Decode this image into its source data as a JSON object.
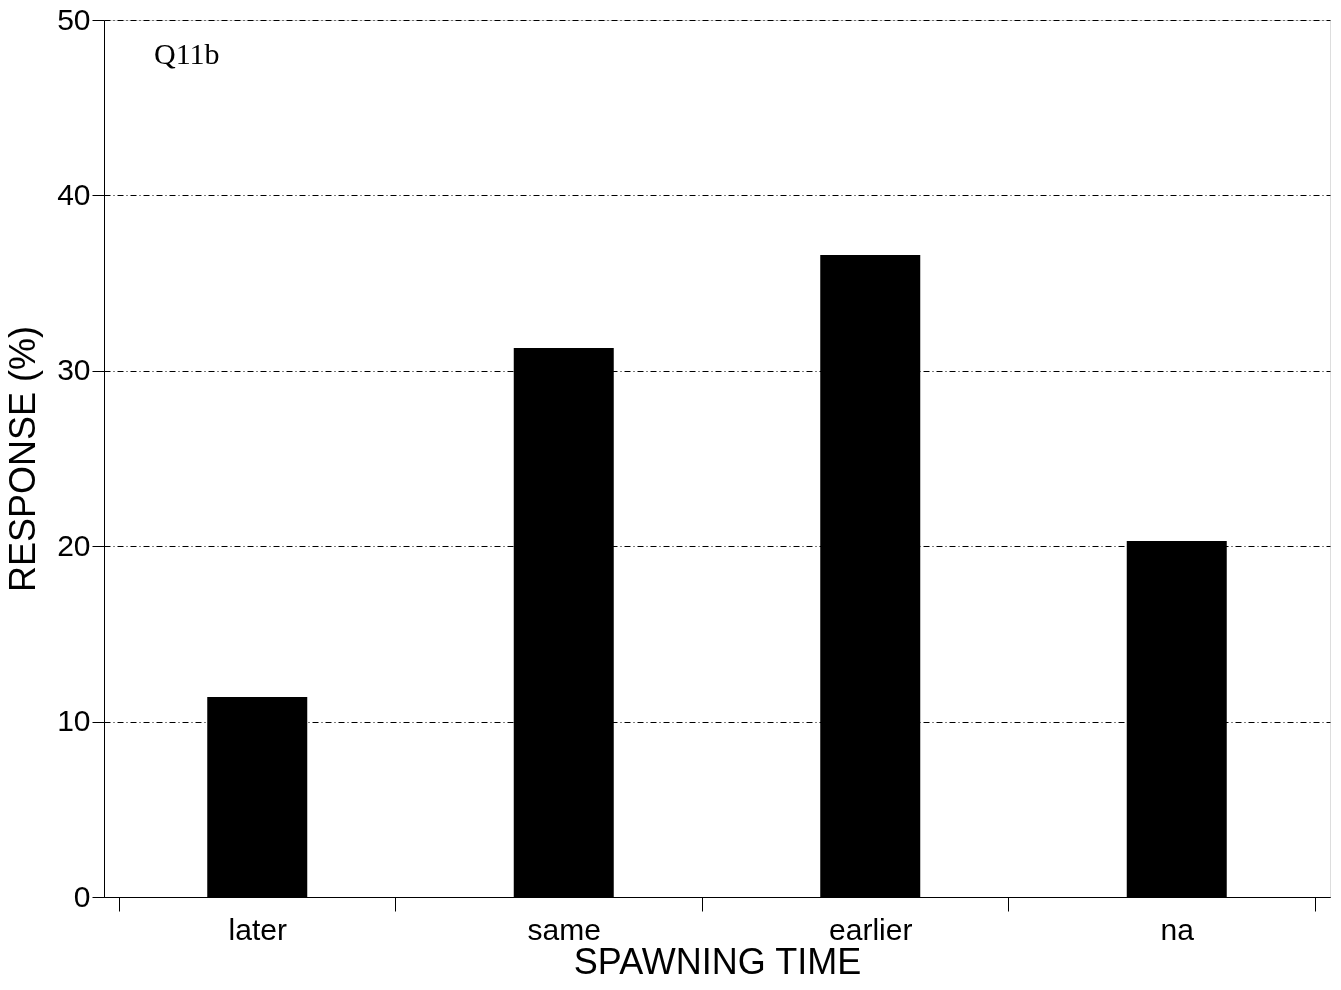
{
  "chart_data": {
    "type": "bar",
    "xlabel": "SPAWNING TIME",
    "ylabel": "RESPONSE (%)",
    "categories": [
      "later",
      "same",
      "earlier",
      "na"
    ],
    "values": [
      11.4,
      31.3,
      36.6,
      20.3
    ],
    "color": "#000000",
    "ylim": [
      0,
      50
    ],
    "yticks": [
      0,
      10,
      20,
      30,
      40,
      50
    ],
    "grid": "y",
    "annotations": [
      "Q11b"
    ]
  }
}
